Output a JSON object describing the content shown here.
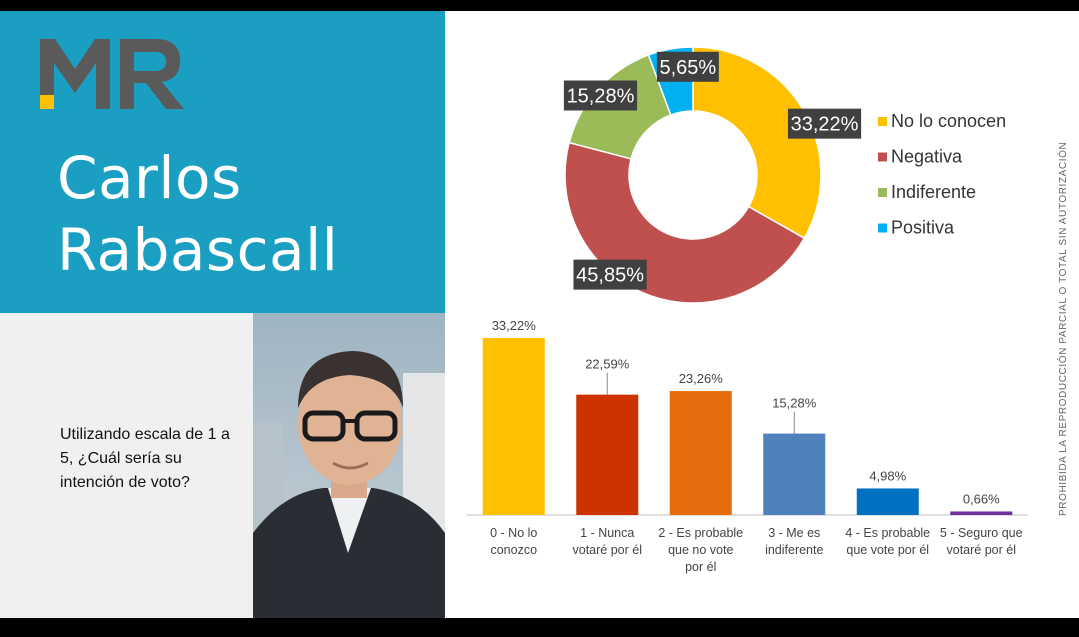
{
  "header": {
    "logo_text": "MR",
    "first_name": "Carlos",
    "last_name": "Rabascall"
  },
  "question": "Utilizando escala de 1 a 5, ¿Cuál sería su intención de voto?",
  "side_note": "PROHIBIDA LA REPRODUCCIÓN PARCIAL O TOTAL SIN AUTORIZACIÓN",
  "colors": {
    "blue_panel": "#1a9fc2",
    "no_lo_conocen": "#ffc000",
    "negativa": "#c0504d",
    "indiferente": "#9bbb59",
    "positiva": "#00b0f0"
  },
  "chart_data": [
    {
      "type": "pie",
      "donut": true,
      "legend_position": "right",
      "categories": [
        "No lo conocen",
        "Negativa",
        "Indiferente",
        "Positiva"
      ],
      "values": [
        33.22,
        45.85,
        15.28,
        5.65
      ],
      "labels": [
        "33,22%",
        "45,85%",
        "15,28%",
        "5,65%"
      ],
      "colors": [
        "#ffc000",
        "#c0504d",
        "#9bbb59",
        "#00b0f0"
      ]
    },
    {
      "type": "bar",
      "categories": [
        "0 - No lo conozco",
        "1 - Nunca votaré por él",
        "2 - Es probable que no vote por él",
        "3 - Me es indiferente",
        "4 - Es probable que vote por él",
        "5 - Seguro que votaré por él"
      ],
      "category_lines": [
        [
          "0 - No lo",
          "conozco"
        ],
        [
          "1 - Nunca",
          "votaré por él"
        ],
        [
          "2 - Es probable",
          "que no vote",
          "por él"
        ],
        [
          "3 - Me es",
          "indiferente"
        ],
        [
          "4 - Es probable",
          "que vote por él"
        ],
        [
          "5 - Seguro que",
          "votaré por él"
        ]
      ],
      "values": [
        33.22,
        22.59,
        23.26,
        15.28,
        4.98,
        0.66
      ],
      "labels": [
        "33,22%",
        "22,59%",
        "23,26%",
        "15,28%",
        "4,98%",
        "0,66%"
      ],
      "colors": [
        "#ffc000",
        "#cc3300",
        "#e46c0a",
        "#4f81bd",
        "#0070c0",
        "#7030a0"
      ],
      "ylim": [
        0,
        35
      ],
      "grid": false
    }
  ]
}
